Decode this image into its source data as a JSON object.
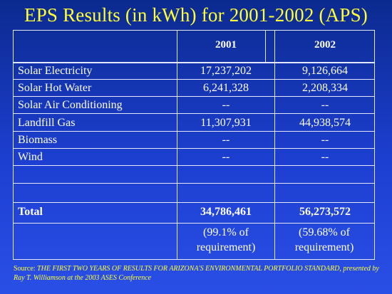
{
  "title": "EPS Results (in kWh) for 2001-2002 (APS)",
  "table": {
    "headers": [
      "2001",
      "2002"
    ],
    "rows": [
      {
        "label": "Solar Electricity",
        "v2001": "17,237,202",
        "v2002": "9,126,664"
      },
      {
        "label": "Solar Hot Water",
        "v2001": "6,241,328",
        "v2002": "2,208,334"
      },
      {
        "label": "Solar Air Conditioning",
        "v2001": "--",
        "v2002": "--"
      },
      {
        "label": "Landfill Gas",
        "v2001": "11,307,931",
        "v2002": "44,938,574"
      },
      {
        "label": "Biomass",
        "v2001": "--",
        "v2002": "--"
      },
      {
        "label": "Wind",
        "v2001": "--",
        "v2002": "--"
      }
    ],
    "total": {
      "label": "Total",
      "v2001": "34,786,461",
      "v2002": "56,273,572"
    },
    "percent": {
      "v2001": "(99.1% of requirement)",
      "v2002": "(59.68% of requirement)"
    }
  },
  "source": {
    "prefix": "Source: ",
    "text": "THE FIRST TWO YEARS OF RESULTS FOR ARIZONA'S ENVIRONMENTAL PORTFOLIO STANDARD, presented by Ray T. Williamson at the 2003 ASES Conference"
  },
  "colors": {
    "background": "#1d3fd1",
    "title": "#ffff33",
    "text": "#ffffff",
    "source": "#ffff33"
  }
}
